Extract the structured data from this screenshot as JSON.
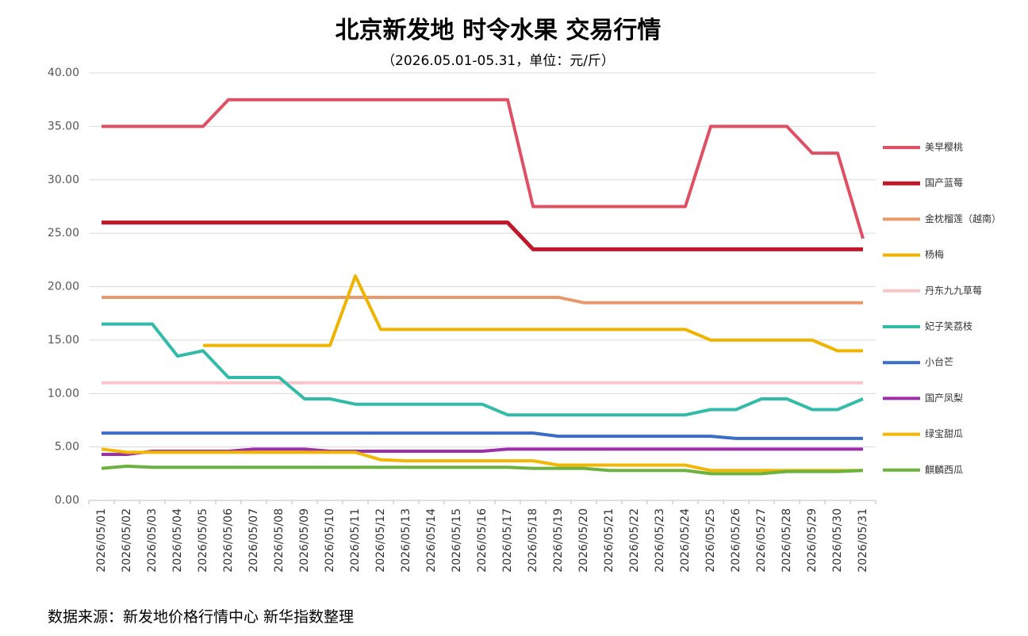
{
  "chart_data": {
    "type": "line",
    "title": "北京新发地 时令水果 交易行情",
    "subtitle": "（2026.05.01-05.31，单位：元/斤）",
    "source": "数据来源：新发地价格行情中心 新华指数整理",
    "categories": [
      "2026/05/01",
      "2026/05/02",
      "2026/05/03",
      "2026/05/04",
      "2026/05/05",
      "2026/05/06",
      "2026/05/07",
      "2026/05/08",
      "2026/05/09",
      "2026/05/10",
      "2026/05/11",
      "2026/05/12",
      "2026/05/13",
      "2026/05/14",
      "2026/05/15",
      "2026/05/16",
      "2026/05/17",
      "2026/05/18",
      "2026/05/19",
      "2026/05/20",
      "2026/05/21",
      "2026/05/22",
      "2026/05/23",
      "2026/05/24",
      "2026/05/25",
      "2026/05/26",
      "2026/05/27",
      "2026/05/28",
      "2026/05/29",
      "2026/05/30",
      "2026/05/31"
    ],
    "ylim": [
      0,
      40
    ],
    "yticks": [
      {
        "value": 0,
        "label": "0.00"
      },
      {
        "value": 5,
        "label": "5.00"
      },
      {
        "value": 10,
        "label": "10.00"
      },
      {
        "value": 15,
        "label": "15.00"
      },
      {
        "value": 20,
        "label": "20.00"
      },
      {
        "value": 25,
        "label": "25.00"
      },
      {
        "value": 30,
        "label": "30.00"
      },
      {
        "value": 35,
        "label": "35.00"
      },
      {
        "value": 40,
        "label": "40.00"
      }
    ],
    "grid": true,
    "series": [
      {
        "name": "美早樱桃",
        "color": "#e05064",
        "values": [
          35,
          35,
          35,
          35,
          35,
          37.5,
          37.5,
          37.5,
          37.5,
          37.5,
          37.5,
          37.5,
          37.5,
          37.5,
          37.5,
          37.5,
          37.5,
          27.5,
          27.5,
          27.5,
          27.5,
          27.5,
          27.5,
          27.5,
          35,
          35,
          35,
          35,
          32.5,
          32.5,
          24.5
        ]
      },
      {
        "name": "国产蓝莓",
        "color": "#c0182a",
        "values": [
          26,
          26,
          26,
          26,
          26,
          26,
          26,
          26,
          26,
          26,
          26,
          26,
          26,
          26,
          26,
          26,
          26,
          23.5,
          23.5,
          23.5,
          23.5,
          23.5,
          23.5,
          23.5,
          23.5,
          23.5,
          23.5,
          23.5,
          23.5,
          23.5,
          23.5
        ]
      },
      {
        "name": "金枕榴莲（越南）",
        "color": "#e99a6c",
        "values": [
          19,
          19,
          19,
          19,
          19,
          19,
          19,
          19,
          19,
          19,
          19,
          19,
          19,
          19,
          19,
          19,
          19,
          19,
          19,
          18.5,
          18.5,
          18.5,
          18.5,
          18.5,
          18.5,
          18.5,
          18.5,
          18.5,
          18.5,
          18.5,
          18.5
        ]
      },
      {
        "name": "杨梅",
        "color": "#f0b400",
        "values": [
          null,
          null,
          null,
          null,
          14.5,
          14.5,
          14.5,
          14.5,
          14.5,
          14.5,
          21,
          16,
          16,
          16,
          16,
          16,
          16,
          16,
          16,
          16,
          16,
          16,
          16,
          16,
          15,
          15,
          15,
          15,
          15,
          14,
          14
        ]
      },
      {
        "name": "丹东九九草莓",
        "color": "#f9c6c8",
        "values": [
          11,
          11,
          11,
          11,
          11,
          11,
          11,
          11,
          11,
          11,
          11,
          11,
          11,
          11,
          11,
          11,
          11,
          11,
          11,
          11,
          11,
          11,
          11,
          11,
          11,
          11,
          11,
          11,
          11,
          11,
          11
        ]
      },
      {
        "name": "妃子笑荔枝",
        "color": "#33bba9",
        "values": [
          16.5,
          16.5,
          16.5,
          13.5,
          14,
          11.5,
          11.5,
          11.5,
          9.5,
          9.5,
          9,
          9,
          9,
          9,
          9,
          9,
          8,
          8,
          8,
          8,
          8,
          8,
          8,
          8,
          8.5,
          8.5,
          9.5,
          9.5,
          8.5,
          8.5,
          9.5
        ]
      },
      {
        "name": "小台芒",
        "color": "#3b6cc6",
        "values": [
          6.3,
          6.3,
          6.3,
          6.3,
          6.3,
          6.3,
          6.3,
          6.3,
          6.3,
          6.3,
          6.3,
          6.3,
          6.3,
          6.3,
          6.3,
          6.3,
          6.3,
          6.3,
          6,
          6,
          6,
          6,
          6,
          6,
          6,
          5.8,
          5.8,
          5.8,
          5.8,
          5.8,
          5.8
        ]
      },
      {
        "name": "国产凤梨",
        "color": "#9b30a9",
        "values": [
          4.3,
          4.3,
          4.6,
          4.6,
          4.6,
          4.6,
          4.8,
          4.8,
          4.8,
          4.6,
          4.6,
          4.6,
          4.6,
          4.6,
          4.6,
          4.6,
          4.8,
          4.8,
          4.8,
          4.8,
          4.8,
          4.8,
          4.8,
          4.8,
          4.8,
          4.8,
          4.8,
          4.8,
          4.8,
          4.8,
          4.8
        ]
      },
      {
        "name": "绿宝甜瓜",
        "color": "#f2b705",
        "values": [
          4.8,
          4.5,
          4.5,
          4.5,
          4.5,
          4.5,
          4.5,
          4.5,
          4.5,
          4.5,
          4.5,
          3.8,
          3.7,
          3.7,
          3.7,
          3.7,
          3.7,
          3.7,
          3.3,
          3.3,
          3.3,
          3.3,
          3.3,
          3.3,
          2.8,
          2.8,
          2.8,
          2.8,
          2.8,
          2.8,
          2.8
        ]
      },
      {
        "name": "麒麟西瓜",
        "color": "#6cb23f",
        "values": [
          3,
          3.2,
          3.1,
          3.1,
          3.1,
          3.1,
          3.1,
          3.1,
          3.1,
          3.1,
          3.1,
          3.1,
          3.1,
          3.1,
          3.1,
          3.1,
          3.1,
          3,
          3,
          3,
          2.8,
          2.8,
          2.8,
          2.8,
          2.5,
          2.5,
          2.5,
          2.7,
          2.7,
          2.7,
          2.8
        ]
      }
    ]
  }
}
